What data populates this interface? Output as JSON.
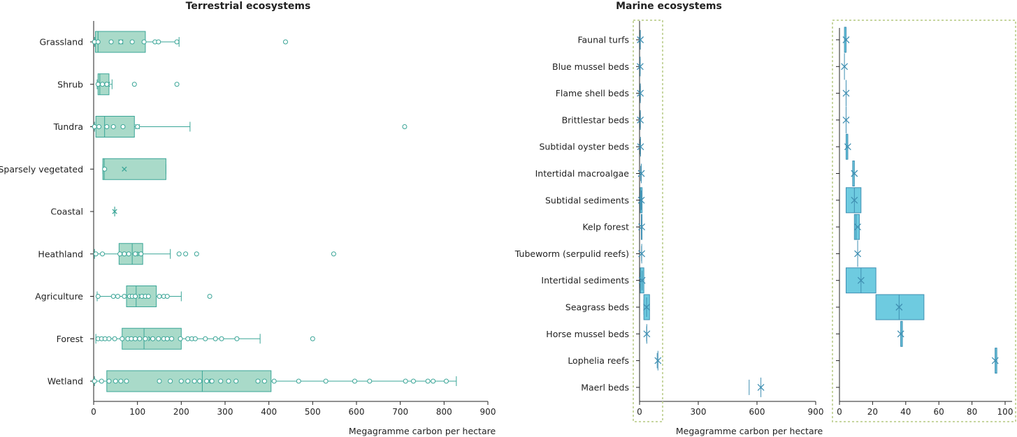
{
  "colors": {
    "terrestrial_fill": "#a9dac9",
    "terrestrial_stroke": "#3aa597",
    "marine_fill": "#6ecbe0",
    "marine_stroke": "#3f8fb2",
    "axis": "#222222",
    "inset_border": "#c7d6a0"
  },
  "chart_data": [
    {
      "type": "boxplot",
      "title": "Terrestrial ecosystems",
      "xlabel": "Megagramme carbon per hectare",
      "xlim": [
        0,
        900
      ],
      "xticks": [
        0,
        100,
        200,
        300,
        400,
        500,
        600,
        700,
        800,
        900
      ],
      "grid": false,
      "orientation": "horizontal",
      "categories": [
        "Grassland",
        "Shrub",
        "Tundra",
        "Sparsely vegetated",
        "Coastal",
        "Heathland",
        "Agriculture",
        "Forest",
        "Wetland"
      ],
      "series": [
        {
          "category": "Grassland",
          "whisker_low": 2,
          "q1": 4,
          "median": 10,
          "q3": 118,
          "whisker_high": 195,
          "mean": 62,
          "points": [
            2,
            10,
            40,
            62,
            88,
            115,
            140,
            148,
            190,
            438
          ]
        },
        {
          "category": "Shrub",
          "whisker_low": 8,
          "q1": 10,
          "median": 14,
          "q3": 35,
          "whisker_high": 42,
          "mean": 32,
          "points": [
            10,
            20,
            30,
            93,
            190
          ]
        },
        {
          "category": "Tundra",
          "whisker_low": 2,
          "q1": 5,
          "median": 25,
          "q3": 93,
          "whisker_high": 220,
          "mean": 100,
          "points": [
            2,
            12,
            30,
            45,
            67,
            100,
            710
          ]
        },
        {
          "category": "Sparsely vegetated",
          "whisker_low": 21,
          "q1": 21,
          "median": 24,
          "q3": 165,
          "whisker_high": 165,
          "mean": 70,
          "points": [
            25
          ]
        },
        {
          "category": "Coastal",
          "whisker_low": 48,
          "q1": 48,
          "median": 48,
          "q3": 48,
          "whisker_high": 48,
          "mean": 48,
          "points": []
        },
        {
          "category": "Heathland",
          "whisker_low": 2,
          "q1": 58,
          "median": 88,
          "q3": 112,
          "whisker_high": 175,
          "mean": 105,
          "points": [
            5,
            20,
            60,
            70,
            80,
            95,
            108,
            195,
            210,
            235,
            548
          ]
        },
        {
          "category": "Agriculture",
          "whisker_low": 8,
          "q1": 75,
          "median": 97,
          "q3": 143,
          "whisker_high": 200,
          "mean": 108,
          "points": [
            10,
            45,
            55,
            70,
            82,
            88,
            95,
            110,
            118,
            125,
            150,
            160,
            168,
            265
          ]
        },
        {
          "category": "Forest",
          "whisker_low": 5,
          "q1": 65,
          "median": 115,
          "q3": 200,
          "whisker_high": 380,
          "mean": 130,
          "points": [
            10,
            18,
            26,
            35,
            48,
            65,
            78,
            86,
            95,
            105,
            118,
            135,
            148,
            160,
            168,
            178,
            198,
            215,
            224,
            232,
            255,
            278,
            292,
            327,
            500
          ]
        },
        {
          "category": "Wetland",
          "whisker_low": 2,
          "q1": 30,
          "median": 248,
          "q3": 405,
          "whisker_high": 828,
          "mean": 262,
          "points": [
            2,
            18,
            35,
            50,
            62,
            75,
            150,
            175,
            200,
            215,
            230,
            242,
            258,
            270,
            290,
            308,
            325,
            375,
            390,
            412,
            468,
            530,
            596,
            630,
            712,
            730,
            763,
            775,
            805
          ]
        }
      ]
    },
    {
      "type": "boxplot",
      "title": "Marine ecosystems",
      "xlabel": "Megagramme carbon per hectare",
      "xlim": [
        0,
        900
      ],
      "xticks": [
        0,
        300,
        600,
        900
      ],
      "grid": false,
      "orientation": "horizontal",
      "categories": [
        "Faunal turfs",
        "Blue mussel beds",
        "Flame shell beds",
        "Brittlestar beds",
        "Subtidal oyster beds",
        "Intertidal macroalgae",
        "Subtidal sediments",
        "Kelp forest",
        "Tubeworm (serpulid reefs)",
        "Intertidal sediments",
        "Seagrass beds",
        "Horse mussel beds",
        "Lophelia reefs",
        "Maerl beds"
      ],
      "series": [
        {
          "category": "Faunal turfs",
          "whisker_low": 3,
          "q1": 3,
          "median": 4,
          "q3": 4,
          "whisker_high": 5,
          "mean": 4
        },
        {
          "category": "Blue mussel beds",
          "whisker_low": 3,
          "q1": 3,
          "median": 3,
          "q3": 3,
          "whisker_high": 4,
          "mean": 3
        },
        {
          "category": "Flame shell beds",
          "whisker_low": 4,
          "q1": 4,
          "median": 4,
          "q3": 4,
          "whisker_high": 5,
          "mean": 4
        },
        {
          "category": "Brittlestar beds",
          "whisker_low": 4,
          "q1": 4,
          "median": 4,
          "q3": 4,
          "whisker_high": 5,
          "mean": 4
        },
        {
          "category": "Subtidal oyster beds",
          "whisker_low": 4,
          "q1": 4,
          "median": 5,
          "q3": 5,
          "whisker_high": 6,
          "mean": 5
        },
        {
          "category": "Intertidal macroalgae",
          "whisker_low": 6,
          "q1": 8,
          "median": 8,
          "q3": 9,
          "whisker_high": 11,
          "mean": 9
        },
        {
          "category": "Subtidal sediments",
          "whisker_low": 3,
          "q1": 4,
          "median": 9,
          "q3": 13,
          "whisker_high": 14,
          "mean": 9
        },
        {
          "category": "Kelp forest",
          "whisker_low": 9,
          "q1": 9,
          "median": 10,
          "q3": 12,
          "whisker_high": 12,
          "mean": 11
        },
        {
          "category": "Tubeworm (serpulid reefs)",
          "whisker_low": 10,
          "q1": 11,
          "median": 11,
          "q3": 11,
          "whisker_high": 12,
          "mean": 11
        },
        {
          "category": "Intertidal sediments",
          "whisker_low": 4,
          "q1": 4,
          "median": 13,
          "q3": 22,
          "whisker_high": 22,
          "mean": 13
        },
        {
          "category": "Seagrass beds",
          "whisker_low": 22,
          "q1": 22,
          "median": 36,
          "q3": 51,
          "whisker_high": 51,
          "mean": 36
        },
        {
          "category": "Horse mussel beds",
          "whisker_low": 36,
          "q1": 37,
          "median": 37,
          "q3": 38,
          "whisker_high": 39,
          "mean": 37
        },
        {
          "category": "Lophelia reefs",
          "whisker_low": 90,
          "q1": 94,
          "median": 94,
          "q3": 95,
          "whisker_high": 98,
          "mean": 94
        },
        {
          "category": "Maerl beds",
          "whisker_low": 560,
          "q1": 620,
          "median": 620,
          "q3": 620,
          "whisker_high": 680,
          "mean": 620
        }
      ],
      "inset": {
        "xlim": [
          0,
          100
        ],
        "xticks": [
          0,
          20,
          40,
          60,
          80,
          100
        ]
      }
    }
  ]
}
